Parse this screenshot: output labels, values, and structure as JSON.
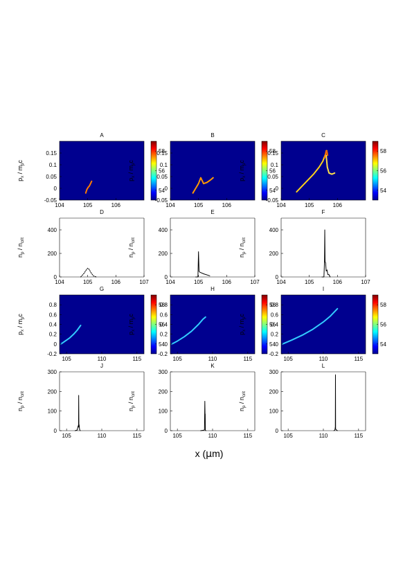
{
  "figure": {
    "xlabel_prefix": "x (",
    "xlabel_mu": "μ",
    "xlabel_suffix": "m)",
    "ylabel_momentum": {
      "main": "p",
      "sub": "x",
      "mid": " / m",
      "sub2": "p",
      "tail": "c"
    },
    "ylabel_density": {
      "main": "n",
      "sub": "p",
      "mid": " / n",
      "sub2": "crit"
    }
  },
  "colorbar": {
    "ticks": [
      "58",
      "56",
      "54"
    ],
    "range": [
      53,
      59
    ]
  },
  "chart_data": [
    {
      "id": "A",
      "type": "heatmap",
      "title": "A",
      "xlim": [
        104,
        107
      ],
      "ylim": [
        -0.05,
        0.2
      ],
      "xticks": [
        104,
        105,
        106
      ],
      "yticks": [
        -0.05,
        0,
        0.05,
        0.1,
        0.15
      ],
      "ylabel_kind": "momentum",
      "background": "#00008f",
      "colorbar": true,
      "series": [
        {
          "color": "#ff7a00",
          "x": [
            104.93,
            104.97,
            105.02,
            105.06,
            105.1,
            105.14
          ],
          "y": [
            -0.02,
            -0.005,
            0.005,
            0.01,
            0.02,
            0.03
          ]
        }
      ]
    },
    {
      "id": "B",
      "type": "heatmap",
      "title": "B",
      "xlim": [
        104,
        107
      ],
      "ylim": [
        -0.05,
        0.2
      ],
      "xticks": [
        104,
        105,
        106
      ],
      "yticks": [
        -0.05,
        0,
        0.05,
        0.1,
        0.15
      ],
      "ylabel_kind": "momentum",
      "background": "#00008f",
      "colorbar": true,
      "series": [
        {
          "color": "#ff9900",
          "x": [
            104.8,
            104.9,
            105.0,
            105.08,
            105.18,
            105.3,
            105.42,
            105.52
          ],
          "y": [
            -0.02,
            0.0,
            0.02,
            0.045,
            0.02,
            0.025,
            0.035,
            0.045
          ]
        }
      ]
    },
    {
      "id": "C",
      "type": "heatmap",
      "title": "C",
      "xlim": [
        104,
        107
      ],
      "ylim": [
        -0.05,
        0.2
      ],
      "xticks": [
        104,
        105,
        106
      ],
      "yticks": [
        -0.05,
        0,
        0.05,
        0.1,
        0.15
      ],
      "ylabel_kind": "momentum",
      "background": "#00008f",
      "colorbar": true,
      "series": [
        {
          "color": "#ffd21a",
          "x": [
            104.55,
            104.75,
            104.95,
            105.15,
            105.35,
            105.48,
            105.56,
            105.62
          ],
          "y": [
            -0.015,
            0.01,
            0.035,
            0.06,
            0.09,
            0.115,
            0.14,
            0.16
          ]
        },
        {
          "color": "#ff6a00",
          "x": [
            105.55,
            105.6,
            105.63,
            105.65
          ],
          "y": [
            0.13,
            0.16,
            0.155,
            0.14
          ]
        },
        {
          "color": "#ffe14a",
          "x": [
            105.6,
            105.64,
            105.7,
            105.8,
            105.9
          ],
          "y": [
            0.14,
            0.09,
            0.065,
            0.06,
            0.065
          ]
        }
      ]
    },
    {
      "id": "D",
      "type": "line",
      "title": "D",
      "xlim": [
        104,
        107
      ],
      "ylim": [
        0,
        500
      ],
      "xticks": [
        104,
        105,
        106,
        107
      ],
      "yticks": [
        0,
        200,
        400
      ],
      "ylabel_kind": "density",
      "dashed": true,
      "series": [
        {
          "color": "#000000",
          "x": [
            104.75,
            104.85,
            104.95,
            105.0,
            105.05,
            105.12,
            105.2,
            105.3
          ],
          "y": [
            0,
            25,
            60,
            75,
            65,
            35,
            10,
            0
          ]
        }
      ]
    },
    {
      "id": "E",
      "type": "line",
      "title": "E",
      "xlim": [
        104,
        107
      ],
      "ylim": [
        0,
        500
      ],
      "xticks": [
        104,
        105,
        106,
        107
      ],
      "yticks": [
        0,
        200,
        400
      ],
      "ylabel_kind": "density",
      "series": [
        {
          "color": "#000000",
          "x": [
            104.9,
            104.98,
            105.0,
            105.02,
            105.03,
            105.05,
            105.2,
            105.4
          ],
          "y": [
            0,
            0,
            215,
            50,
            45,
            40,
            25,
            10
          ]
        }
      ]
    },
    {
      "id": "F",
      "type": "line",
      "title": "F",
      "xlim": [
        104,
        107
      ],
      "ylim": [
        0,
        500
      ],
      "xticks": [
        104,
        105,
        106,
        107
      ],
      "yticks": [
        0,
        200,
        400
      ],
      "ylabel_kind": "density",
      "series": [
        {
          "color": "#000000",
          "x": [
            105.45,
            105.52,
            105.54,
            105.55,
            105.56,
            105.58,
            105.6,
            105.63,
            105.66,
            105.7,
            105.74
          ],
          "y": [
            0,
            0,
            130,
            400,
            130,
            120,
            50,
            60,
            20,
            20,
            0
          ]
        }
      ]
    },
    {
      "id": "G",
      "type": "heatmap",
      "title": "G",
      "xlim": [
        104,
        116
      ],
      "ylim": [
        -0.2,
        1.0
      ],
      "xticks": [
        105,
        110,
        115
      ],
      "yticks": [
        -0.2,
        0,
        0.2,
        0.4,
        0.6,
        0.8
      ],
      "ylabel_kind": "momentum",
      "background": "#00008f",
      "colorbar": true,
      "series": [
        {
          "color": "#33ccff",
          "x": [
            104.2,
            104.8,
            105.4,
            106.0,
            106.5,
            106.8,
            107.0
          ],
          "y": [
            0.0,
            0.06,
            0.12,
            0.2,
            0.28,
            0.34,
            0.38
          ]
        }
      ]
    },
    {
      "id": "H",
      "type": "heatmap",
      "title": "H",
      "xlim": [
        104,
        116
      ],
      "ylim": [
        -0.2,
        1.0
      ],
      "xticks": [
        105,
        110,
        115
      ],
      "yticks": [
        -0.2,
        0,
        0.2,
        0.4,
        0.6,
        0.8
      ],
      "ylabel_kind": "momentum",
      "background": "#00008f",
      "colorbar": true,
      "series": [
        {
          "color": "#33ccff",
          "x": [
            104.2,
            105.0,
            106.0,
            107.0,
            108.0,
            108.6,
            109.0
          ],
          "y": [
            0.0,
            0.06,
            0.15,
            0.26,
            0.4,
            0.5,
            0.55
          ]
        }
      ]
    },
    {
      "id": "I",
      "type": "heatmap",
      "title": "I",
      "xlim": [
        104,
        116
      ],
      "ylim": [
        -0.2,
        1.0
      ],
      "xticks": [
        105,
        110,
        115
      ],
      "yticks": [
        -0.2,
        0,
        0.2,
        0.4,
        0.6,
        0.8
      ],
      "ylabel_kind": "momentum",
      "background": "#00008f",
      "colorbar": true,
      "series": [
        {
          "color": "#33ccff",
          "x": [
            104.2,
            105.5,
            107.0,
            108.5,
            110.0,
            111.0,
            111.6,
            112.0
          ],
          "y": [
            0.0,
            0.08,
            0.18,
            0.3,
            0.45,
            0.57,
            0.66,
            0.72
          ]
        }
      ]
    },
    {
      "id": "J",
      "type": "line",
      "title": "J",
      "xlim": [
        104,
        116
      ],
      "ylim": [
        0,
        300
      ],
      "xticks": [
        105,
        110,
        115
      ],
      "yticks": [
        0,
        100,
        200,
        300
      ],
      "ylabel_kind": "density",
      "series": [
        {
          "color": "#000000",
          "x": [
            106.2,
            106.5,
            106.65,
            106.7,
            106.72,
            106.75,
            106.78,
            106.85,
            106.95
          ],
          "y": [
            0,
            3,
            25,
            18,
            180,
            20,
            30,
            5,
            0
          ]
        }
      ]
    },
    {
      "id": "K",
      "type": "line",
      "title": "K",
      "xlim": [
        104,
        116
      ],
      "ylim": [
        0,
        300
      ],
      "xticks": [
        105,
        110,
        115
      ],
      "yticks": [
        0,
        100,
        200,
        300
      ],
      "ylabel_kind": "density",
      "series": [
        {
          "color": "#000000",
          "x": [
            108.3,
            108.7,
            108.85,
            108.9,
            108.93,
            108.95,
            108.97,
            109.05
          ],
          "y": [
            0,
            2,
            4,
            150,
            80,
            85,
            3,
            0
          ]
        }
      ]
    },
    {
      "id": "L",
      "type": "line",
      "title": "L",
      "xlim": [
        104,
        116
      ],
      "ylim": [
        0,
        300
      ],
      "xticks": [
        105,
        110,
        115
      ],
      "yticks": [
        0,
        100,
        200,
        300
      ],
      "ylabel_kind": "density",
      "series": [
        {
          "color": "#000000",
          "x": [
            111.5,
            111.65,
            111.7,
            111.72,
            111.74,
            111.8,
            112.0
          ],
          "y": [
            0,
            5,
            20,
            285,
            10,
            5,
            0
          ]
        }
      ]
    }
  ]
}
